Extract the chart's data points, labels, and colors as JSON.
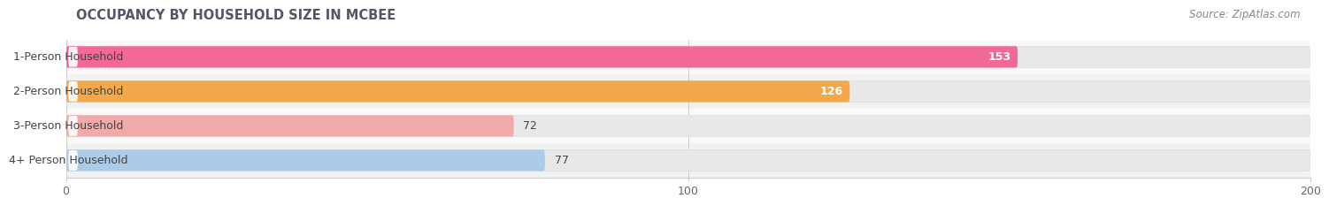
{
  "title": "OCCUPANCY BY HOUSEHOLD SIZE IN MCBEE",
  "source": "Source: ZipAtlas.com",
  "categories": [
    "1-Person Household",
    "2-Person Household",
    "3-Person Household",
    "4+ Person Household"
  ],
  "values": [
    153,
    126,
    72,
    77
  ],
  "bar_colors": [
    "#F26898",
    "#F5A84B",
    "#F0AAAA",
    "#AACCE8"
  ],
  "label_colors": [
    "white",
    "white",
    "#555555",
    "#555555"
  ],
  "xlim": [
    -55,
    210
  ],
  "xlim_display": [
    0,
    200
  ],
  "xticks": [
    0,
    100,
    200
  ],
  "bar_height": 0.62,
  "track_color": "#E8E8E8",
  "row_bg_colors": [
    "#F2F2F2",
    "#F9F9F9",
    "#F2F2F2",
    "#F9F9F9"
  ],
  "background_color": "#FFFFFF",
  "title_fontsize": 10.5,
  "source_fontsize": 8.5,
  "label_fontsize": 9,
  "tick_fontsize": 9,
  "category_fontsize": 9,
  "title_color": "#555566",
  "source_color": "#888888"
}
